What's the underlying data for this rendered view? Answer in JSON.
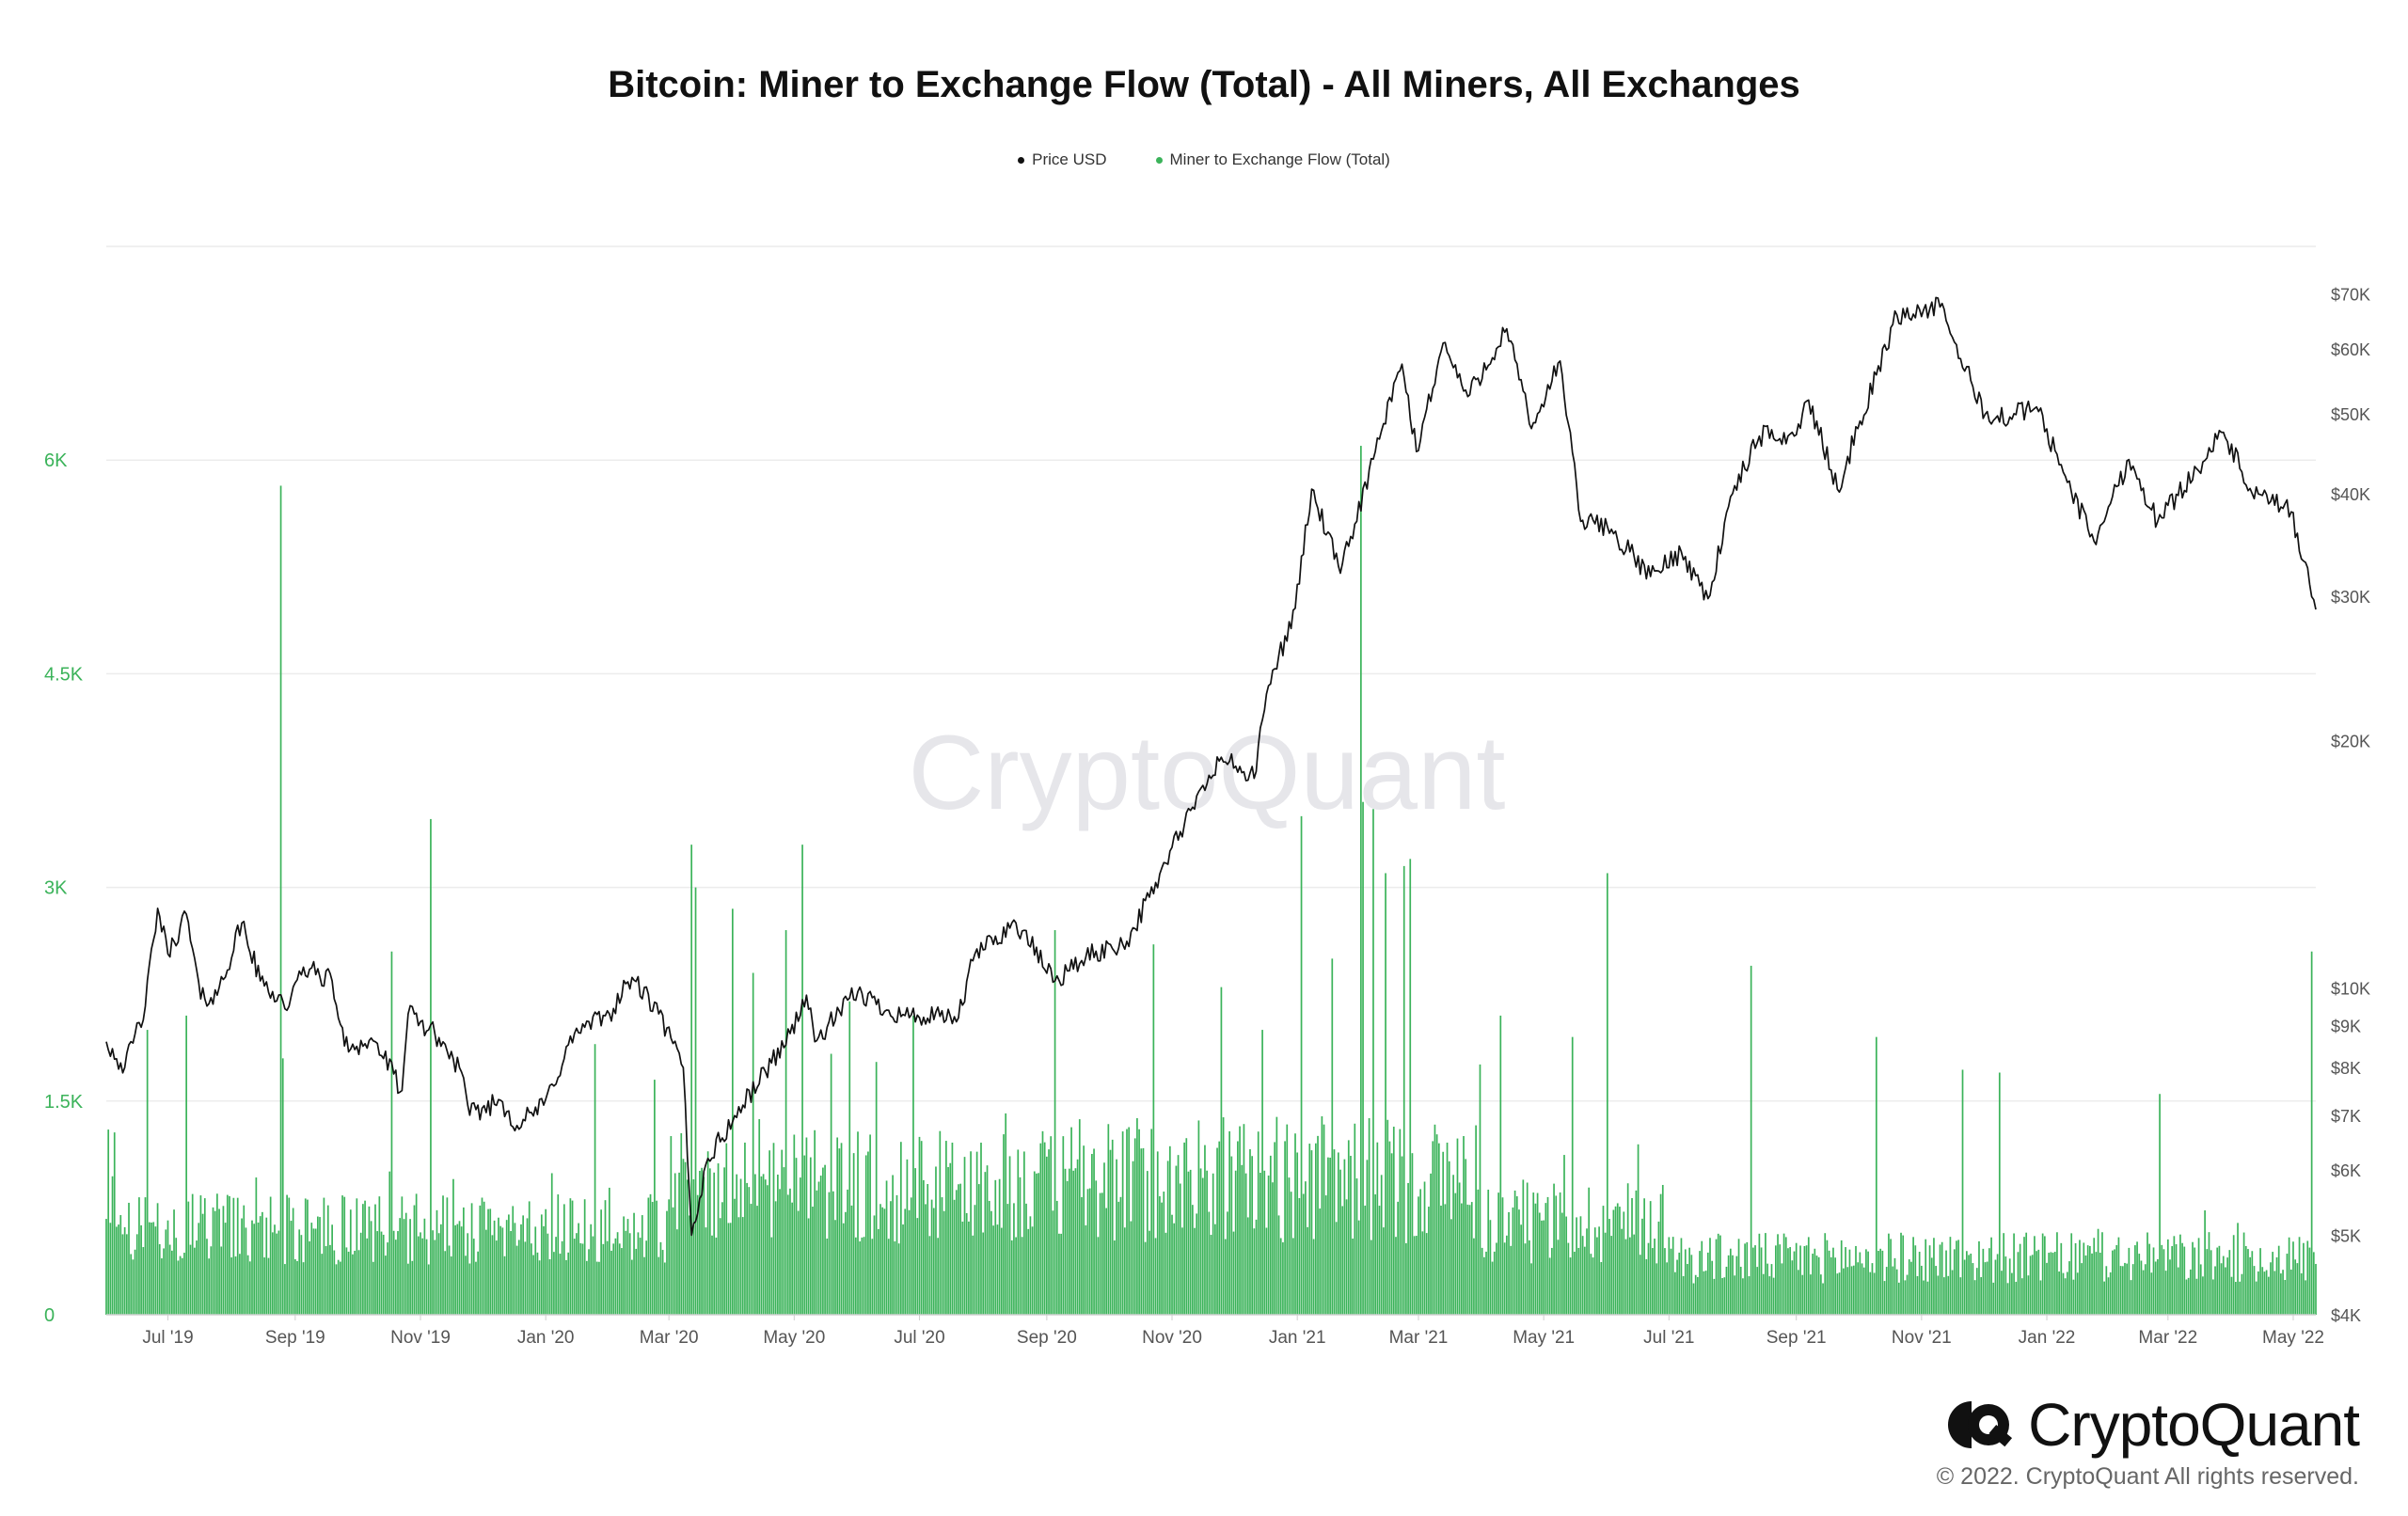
{
  "title": "Bitcoin: Miner to Exchange Flow (Total) - All Miners, All Exchanges",
  "legend": [
    {
      "name": "Price USD",
      "color": "#111111"
    },
    {
      "name": "Miner to Exchange Flow (Total)",
      "color": "#3bb35a"
    }
  ],
  "watermark": "CryptoQuant",
  "brand": {
    "name": "CryptoQuant",
    "icon": "cryptoquant-logo-icon"
  },
  "copyright": "© 2022. CryptoQuant All rights reserved.",
  "chart_data": {
    "type": "bar",
    "x_range": [
      "2019-06-01",
      "2022-05-12"
    ],
    "x_ticks": [
      {
        "label": "Jul '19",
        "date": "2019-07-01"
      },
      {
        "label": "Sep '19",
        "date": "2019-09-01"
      },
      {
        "label": "Nov '19",
        "date": "2019-11-01"
      },
      {
        "label": "Jan '20",
        "date": "2020-01-01"
      },
      {
        "label": "Mar '20",
        "date": "2020-03-01"
      },
      {
        "label": "May '20",
        "date": "2020-05-01"
      },
      {
        "label": "Jul '20",
        "date": "2020-07-01"
      },
      {
        "label": "Sep '20",
        "date": "2020-09-01"
      },
      {
        "label": "Nov '20",
        "date": "2020-11-01"
      },
      {
        "label": "Jan '21",
        "date": "2021-01-01"
      },
      {
        "label": "Mar '21",
        "date": "2021-03-01"
      },
      {
        "label": "May '21",
        "date": "2021-05-01"
      },
      {
        "label": "Jul '21",
        "date": "2021-07-01"
      },
      {
        "label": "Sep '21",
        "date": "2021-09-01"
      },
      {
        "label": "Nov '21",
        "date": "2021-11-01"
      },
      {
        "label": "Jan '22",
        "date": "2022-01-01"
      },
      {
        "label": "Mar '22",
        "date": "2022-03-01"
      },
      {
        "label": "May '22",
        "date": "2022-05-01"
      }
    ],
    "y_left": {
      "series": "Miner to Exchange Flow (Total)",
      "range": [
        0,
        7500
      ],
      "ticks": [
        {
          "label": "0",
          "value": 0
        },
        {
          "label": "1.5K",
          "value": 1500
        },
        {
          "label": "3K",
          "value": 3000
        },
        {
          "label": "4.5K",
          "value": 4500
        },
        {
          "label": "6K",
          "value": 6000
        }
      ],
      "color": "#3bb35a"
    },
    "y_right": {
      "series": "Price USD",
      "scale": "log",
      "range": [
        4000,
        80000
      ],
      "ticks": [
        {
          "label": "$4K",
          "value": 4000
        },
        {
          "label": "$5K",
          "value": 5000
        },
        {
          "label": "$6K",
          "value": 6000
        },
        {
          "label": "$7K",
          "value": 7000
        },
        {
          "label": "$8K",
          "value": 8000
        },
        {
          "label": "$9K",
          "value": 9000
        },
        {
          "label": "$10K",
          "value": 10000
        },
        {
          "label": "$20K",
          "value": 20000
        },
        {
          "label": "$30K",
          "value": 30000
        },
        {
          "label": "$40K",
          "value": 40000
        },
        {
          "label": "$50K",
          "value": 50000
        },
        {
          "label": "$60K",
          "value": 60000
        },
        {
          "label": "$70K",
          "value": 70000
        }
      ]
    },
    "grid": true,
    "legend_position": "top-center",
    "price_series": {
      "name": "Price USD",
      "points": [
        [
          "2019-06-01",
          8600
        ],
        [
          "2019-06-10",
          8000
        ],
        [
          "2019-06-20",
          9500
        ],
        [
          "2019-06-26",
          12500
        ],
        [
          "2019-07-01",
          11000
        ],
        [
          "2019-07-10",
          12300
        ],
        [
          "2019-07-17",
          9700
        ],
        [
          "2019-07-25",
          9800
        ],
        [
          "2019-08-06",
          12000
        ],
        [
          "2019-08-15",
          10200
        ],
        [
          "2019-08-29",
          9500
        ],
        [
          "2019-09-05",
          10600
        ],
        [
          "2019-09-19",
          10200
        ],
        [
          "2019-09-25",
          8500
        ],
        [
          "2019-10-10",
          8600
        ],
        [
          "2019-10-23",
          7500
        ],
        [
          "2019-10-26",
          9300
        ],
        [
          "2019-11-08",
          8800
        ],
        [
          "2019-11-20",
          8000
        ],
        [
          "2019-11-25",
          7000
        ],
        [
          "2019-12-10",
          7300
        ],
        [
          "2019-12-18",
          6800
        ],
        [
          "2019-12-31",
          7200
        ],
        [
          "2020-01-15",
          8800
        ],
        [
          "2020-02-01",
          9300
        ],
        [
          "2020-02-12",
          10300
        ],
        [
          "2020-02-25",
          9300
        ],
        [
          "2020-03-08",
          8000
        ],
        [
          "2020-03-12",
          5000
        ],
        [
          "2020-03-20",
          6200
        ],
        [
          "2020-04-06",
          7200
        ],
        [
          "2020-04-29",
          8800
        ],
        [
          "2020-05-07",
          9800
        ],
        [
          "2020-05-11",
          8600
        ],
        [
          "2020-06-01",
          9900
        ],
        [
          "2020-06-15",
          9400
        ],
        [
          "2020-07-01",
          9200
        ],
        [
          "2020-07-20",
          9200
        ],
        [
          "2020-07-28",
          11000
        ],
        [
          "2020-08-17",
          12000
        ],
        [
          "2020-09-05",
          10200
        ],
        [
          "2020-09-20",
          10900
        ],
        [
          "2020-10-10",
          11400
        ],
        [
          "2020-10-21",
          12900
        ],
        [
          "2020-11-05",
          15500
        ],
        [
          "2020-11-25",
          19100
        ],
        [
          "2020-12-11",
          18000
        ],
        [
          "2020-12-17",
          22800
        ],
        [
          "2020-12-31",
          29000
        ],
        [
          "2021-01-08",
          40500
        ],
        [
          "2021-01-22",
          32000
        ],
        [
          "2021-02-08",
          45000
        ],
        [
          "2021-02-21",
          57500
        ],
        [
          "2021-02-28",
          45000
        ],
        [
          "2021-03-13",
          61000
        ],
        [
          "2021-03-25",
          52500
        ],
        [
          "2021-04-13",
          63500
        ],
        [
          "2021-04-25",
          48000
        ],
        [
          "2021-05-09",
          58000
        ],
        [
          "2021-05-19",
          37000
        ],
        [
          "2021-06-01",
          36500
        ],
        [
          "2021-06-22",
          31700
        ],
        [
          "2021-07-07",
          34000
        ],
        [
          "2021-07-20",
          29800
        ],
        [
          "2021-08-01",
          40000
        ],
        [
          "2021-08-14",
          47000
        ],
        [
          "2021-08-31",
          47000
        ],
        [
          "2021-09-07",
          52000
        ],
        [
          "2021-09-21",
          40500
        ],
        [
          "2021-10-01",
          48000
        ],
        [
          "2021-10-20",
          66000
        ],
        [
          "2021-11-10",
          67500
        ],
        [
          "2021-11-26",
          54000
        ],
        [
          "2021-12-04",
          49000
        ],
        [
          "2021-12-27",
          51000
        ],
        [
          "2022-01-10",
          42000
        ],
        [
          "2022-01-24",
          35000
        ],
        [
          "2022-02-10",
          44000
        ],
        [
          "2022-02-24",
          37000
        ],
        [
          "2022-03-28",
          47500
        ],
        [
          "2022-04-11",
          40000
        ],
        [
          "2022-04-30",
          38000
        ],
        [
          "2022-05-09",
          31000
        ],
        [
          "2022-05-12",
          28900
        ]
      ]
    },
    "flow_series": {
      "name": "Miner to Exchange Flow (Total)",
      "baseline_periods": [
        {
          "from": "2019-06-01",
          "to": "2020-03-01",
          "typical": 600,
          "variation": 250
        },
        {
          "from": "2020-03-01",
          "to": "2020-10-01",
          "typical": 900,
          "variation": 400
        },
        {
          "from": "2020-10-01",
          "to": "2021-04-01",
          "typical": 950,
          "variation": 450
        },
        {
          "from": "2021-04-01",
          "to": "2021-07-01",
          "typical": 650,
          "variation": 300
        },
        {
          "from": "2021-07-01",
          "to": "2022-05-12",
          "typical": 400,
          "variation": 180
        }
      ],
      "spikes": [
        [
          "2019-06-02",
          1300
        ],
        [
          "2019-06-05",
          1280
        ],
        [
          "2019-06-21",
          2000
        ],
        [
          "2019-07-10",
          2100
        ],
        [
          "2019-08-25",
          5820
        ],
        [
          "2019-08-26",
          1800
        ],
        [
          "2019-10-18",
          2550
        ],
        [
          "2019-11-06",
          3480
        ],
        [
          "2020-01-25",
          1900
        ],
        [
          "2020-02-23",
          1650
        ],
        [
          "2020-03-12",
          3300
        ],
        [
          "2020-03-14",
          3000
        ],
        [
          "2020-04-01",
          2850
        ],
        [
          "2020-04-11",
          2400
        ],
        [
          "2020-04-27",
          2700
        ],
        [
          "2020-05-05",
          3300
        ],
        [
          "2020-05-28",
          2200
        ],
        [
          "2020-06-28",
          2100
        ],
        [
          "2020-09-05",
          2700
        ],
        [
          "2020-10-23",
          2600
        ],
        [
          "2020-11-25",
          2300
        ],
        [
          "2020-12-15",
          2000
        ],
        [
          "2021-01-03",
          3500
        ],
        [
          "2021-01-18",
          2500
        ],
        [
          "2021-02-01",
          6100
        ],
        [
          "2021-02-02",
          3600
        ],
        [
          "2021-02-07",
          3550
        ],
        [
          "2021-02-13",
          3100
        ],
        [
          "2021-02-22",
          3150
        ],
        [
          "2021-02-25",
          3200
        ],
        [
          "2021-04-10",
          2100
        ],
        [
          "2021-05-15",
          1950
        ],
        [
          "2021-06-01",
          3100
        ],
        [
          "2021-08-10",
          2450
        ],
        [
          "2021-10-10",
          1950
        ],
        [
          "2021-11-21",
          1720
        ],
        [
          "2021-12-09",
          1700
        ],
        [
          "2022-02-25",
          1550
        ],
        [
          "2022-05-10",
          2550
        ]
      ]
    }
  }
}
